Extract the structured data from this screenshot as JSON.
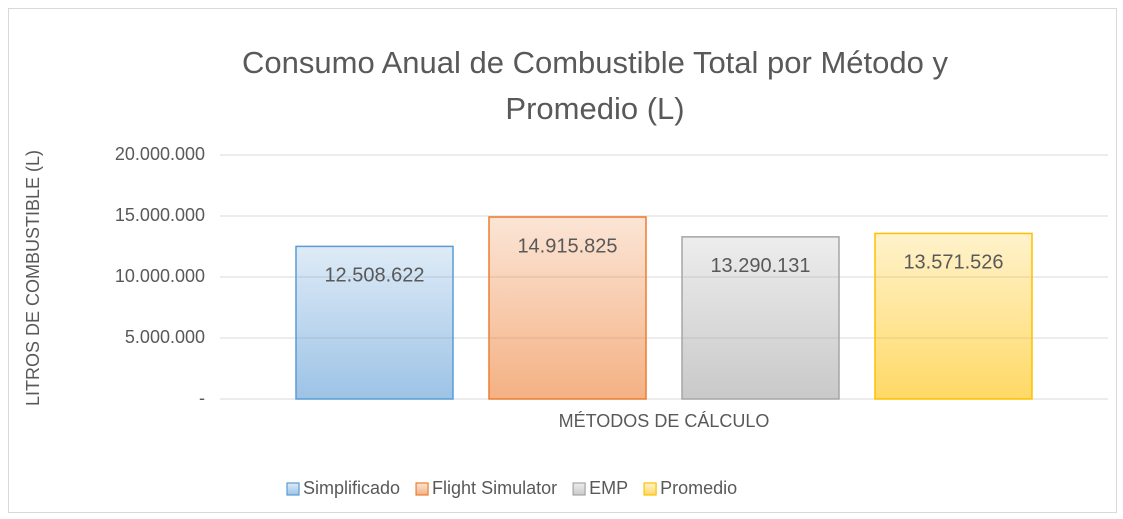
{
  "chart_data": {
    "type": "bar",
    "title": "Consumo Anual de Combustible Total por Método y Promedio (L)",
    "x_label": "MÉTODOS DE CÁLCULO",
    "y_label": "LITROS DE COMBUSTIBLE (L)",
    "categories": [
      null
    ],
    "series": [
      {
        "name": "Simplificado",
        "color": "#5b9bd5",
        "values": [
          12508622
        ],
        "value_labels": [
          "12.508.622"
        ]
      },
      {
        "name": "Flight Simulator",
        "color": "#ed7d31",
        "values": [
          14915825
        ],
        "value_labels": [
          "14.915.825"
        ]
      },
      {
        "name": "EMP",
        "color": "#a5a5a5",
        "values": [
          13290131
        ],
        "value_labels": [
          "13.290.131"
        ]
      },
      {
        "name": "Promedio",
        "color": "#ffc000",
        "values": [
          13571526
        ],
        "value_labels": [
          "13.571.526"
        ]
      }
    ],
    "ylim": [
      0,
      20000000
    ],
    "yticks": [
      {
        "value": 0,
        "label": "-"
      },
      {
        "value": 5000000,
        "label": "5.000.000"
      },
      {
        "value": 10000000,
        "label": "10.000.000"
      },
      {
        "value": 15000000,
        "label": "15.000.000"
      },
      {
        "value": 20000000,
        "label": "20.000.000"
      }
    ],
    "grid": true,
    "legend": "bottom"
  }
}
